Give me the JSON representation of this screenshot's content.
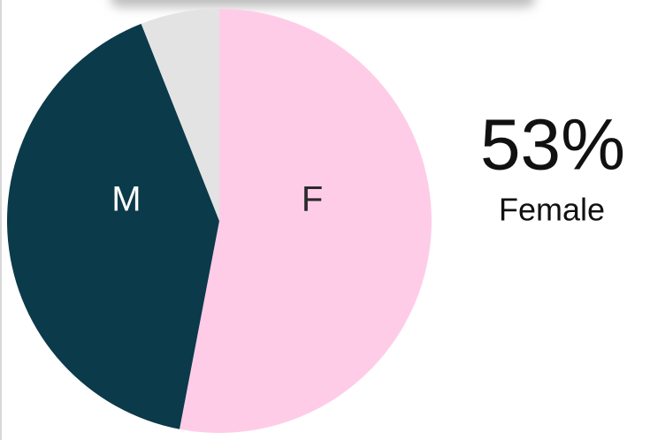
{
  "chart_data": {
    "type": "pie",
    "categories": [
      "F",
      "M",
      null
    ],
    "values": [
      53,
      41,
      6
    ],
    "colors": [
      "#ffcce8",
      "#0b3a4a",
      "#e3e3e3"
    ],
    "label_colors": [
      "#2a2a2a",
      "#ffffff",
      "#2a2a2a"
    ],
    "annotation": {
      "value_text": "53%",
      "label": "Female"
    }
  }
}
